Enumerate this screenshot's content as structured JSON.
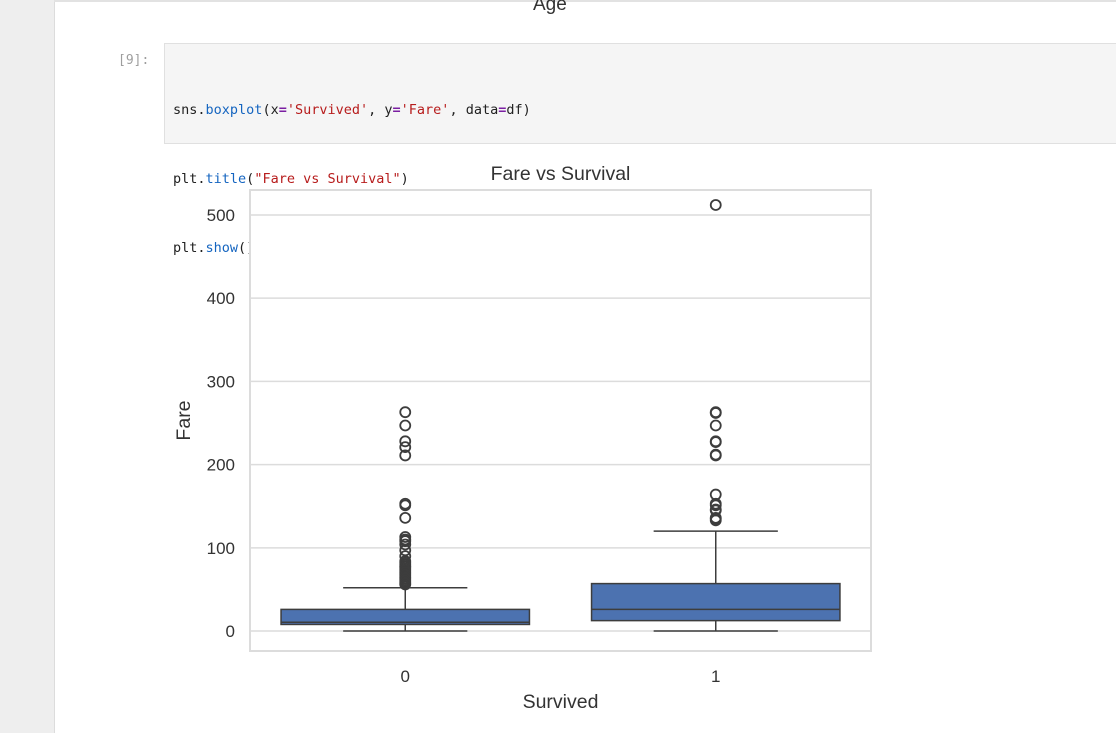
{
  "previous_output": {
    "xlabel_fragment": "Age"
  },
  "cell": {
    "prompt": "[9]:",
    "code": {
      "line1": {
        "a": "sns",
        "b": ".",
        "c": "boxplot",
        "d": "(x",
        "e": "=",
        "f": "'Survived'",
        "g": ", y",
        "h": "=",
        "i": "'Fare'",
        "j": ", data",
        "k": "=",
        "l": "df)"
      },
      "line2": {
        "a": "plt",
        "b": ".",
        "c": "title",
        "d": "(",
        "e": "\"Fare vs Survival\"",
        "f": ")"
      },
      "line3": {
        "a": "plt",
        "b": ".",
        "c": "show",
        "d": "()"
      }
    }
  },
  "colors": {
    "box_fill": "#4c72b0",
    "grid": "#dcdcdc",
    "text": "#333333"
  },
  "chart_data": {
    "type": "box",
    "title": "Fare vs Survival",
    "xlabel": "Survived",
    "ylabel": "Fare",
    "categories": [
      "0",
      "1"
    ],
    "ylim": [
      -24,
      530
    ],
    "yticks": [
      0,
      100,
      200,
      300,
      400,
      500
    ],
    "grid": true,
    "boxes": [
      {
        "category": "0",
        "whisker_low": 0,
        "q1": 7.9,
        "median": 10.5,
        "q3": 26,
        "whisker_high": 52,
        "outliers": [
          56,
          57,
          59,
          61,
          63,
          65,
          67,
          69,
          71,
          73,
          75,
          77,
          78,
          80,
          82,
          84,
          90,
          97,
          104,
          108,
          110,
          113,
          136,
          151,
          153,
          211,
          221,
          228,
          247,
          263
        ]
      },
      {
        "category": "1",
        "whisker_low": 0,
        "q1": 12.5,
        "median": 26,
        "q3": 57,
        "whisker_high": 120,
        "outliers": [
          133,
          135,
          136,
          145,
          146,
          151,
          153,
          164,
          211,
          212,
          227,
          228,
          247,
          262,
          263,
          512
        ]
      }
    ]
  }
}
